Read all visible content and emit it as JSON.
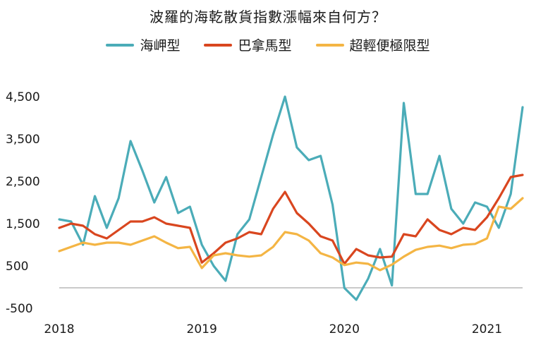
{
  "chart_data": {
    "type": "line",
    "title": "波羅的海乾散貨指數漲幅來自何方？",
    "x_tick_labels": [
      "2018",
      "2019",
      "2020",
      "2021"
    ],
    "y_tick_labels": [
      "4,500",
      "3,500",
      "2,500",
      "1,500",
      "500",
      "-500"
    ],
    "y_ticks": [
      4500,
      3500,
      2500,
      1500,
      500,
      -500
    ],
    "ylim": [
      -500,
      4600
    ],
    "x_range": [
      "2018-01",
      "2021-04"
    ],
    "grid": false,
    "legend_position": "top-center",
    "x": [
      "2018-01",
      "2018-02",
      "2018-03",
      "2018-04",
      "2018-05",
      "2018-06",
      "2018-07",
      "2018-08",
      "2018-09",
      "2018-10",
      "2018-11",
      "2018-12",
      "2019-01",
      "2019-02",
      "2019-03",
      "2019-04",
      "2019-05",
      "2019-06",
      "2019-07",
      "2019-08",
      "2019-09",
      "2019-10",
      "2019-11",
      "2019-12",
      "2020-01",
      "2020-02",
      "2020-03",
      "2020-04",
      "2020-05",
      "2020-06",
      "2020-07",
      "2020-08",
      "2020-09",
      "2020-10",
      "2020-11",
      "2020-12",
      "2021-01",
      "2021-02",
      "2021-03",
      "2021-04"
    ],
    "series": [
      {
        "name": "海岬型",
        "color": "#4bacb8",
        "values": [
          1600,
          1550,
          1000,
          2150,
          1400,
          2100,
          3450,
          2750,
          2000,
          2600,
          1750,
          1900,
          1000,
          500,
          150,
          1250,
          1600,
          2600,
          3600,
          4500,
          3300,
          3000,
          3100,
          1950,
          -20,
          -300,
          200,
          900,
          40,
          4350,
          2200,
          2200,
          3100,
          1850,
          1500,
          2000,
          1900,
          1400,
          2200,
          4250
        ]
      },
      {
        "name": "巴拿馬型",
        "color": "#d9461f",
        "values": [
          1400,
          1500,
          1450,
          1250,
          1150,
          1350,
          1550,
          1550,
          1650,
          1500,
          1450,
          1400,
          580,
          800,
          1050,
          1150,
          1300,
          1250,
          1850,
          2250,
          1750,
          1500,
          1200,
          1100,
          550,
          900,
          750,
          700,
          720,
          1250,
          1200,
          1600,
          1350,
          1250,
          1400,
          1350,
          1650,
          2100,
          2600,
          2650
        ]
      },
      {
        "name": "超輕便極限型",
        "color": "#f4b544",
        "values": [
          850,
          950,
          1050,
          1000,
          1050,
          1050,
          1000,
          1100,
          1200,
          1050,
          920,
          950,
          450,
          750,
          800,
          750,
          720,
          750,
          950,
          1300,
          1250,
          1100,
          800,
          700,
          520,
          580,
          550,
          400,
          530,
          720,
          880,
          950,
          980,
          920,
          1000,
          1020,
          1150,
          1900,
          1850,
          2100
        ]
      }
    ]
  }
}
